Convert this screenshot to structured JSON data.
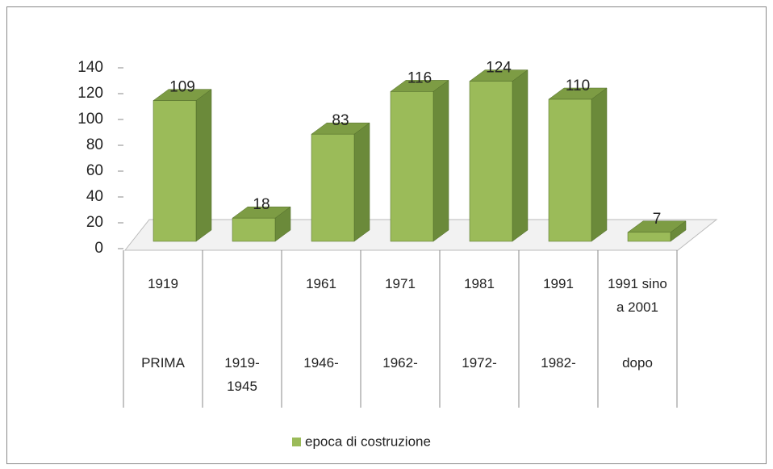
{
  "chart_data": {
    "type": "bar3d",
    "categories": [
      [
        "1919",
        "PRIMA"
      ],
      [
        null,
        "1919-1945"
      ],
      [
        "1961",
        "1946-"
      ],
      [
        "1971",
        "1962-"
      ],
      [
        "1981",
        "1972-"
      ],
      [
        "1991",
        "1982-"
      ],
      [
        "1991 sino a 2001",
        "dopo"
      ]
    ],
    "series": [
      {
        "name": "epoca di costruzione",
        "color": "#9bbb59",
        "values": [
          109,
          18,
          83,
          116,
          124,
          110,
          7
        ]
      }
    ],
    "ylim": [
      0,
      140
    ],
    "yticks": [
      0,
      20,
      40,
      60,
      80,
      100,
      120,
      140
    ],
    "grid": false,
    "legend": "bottom"
  }
}
